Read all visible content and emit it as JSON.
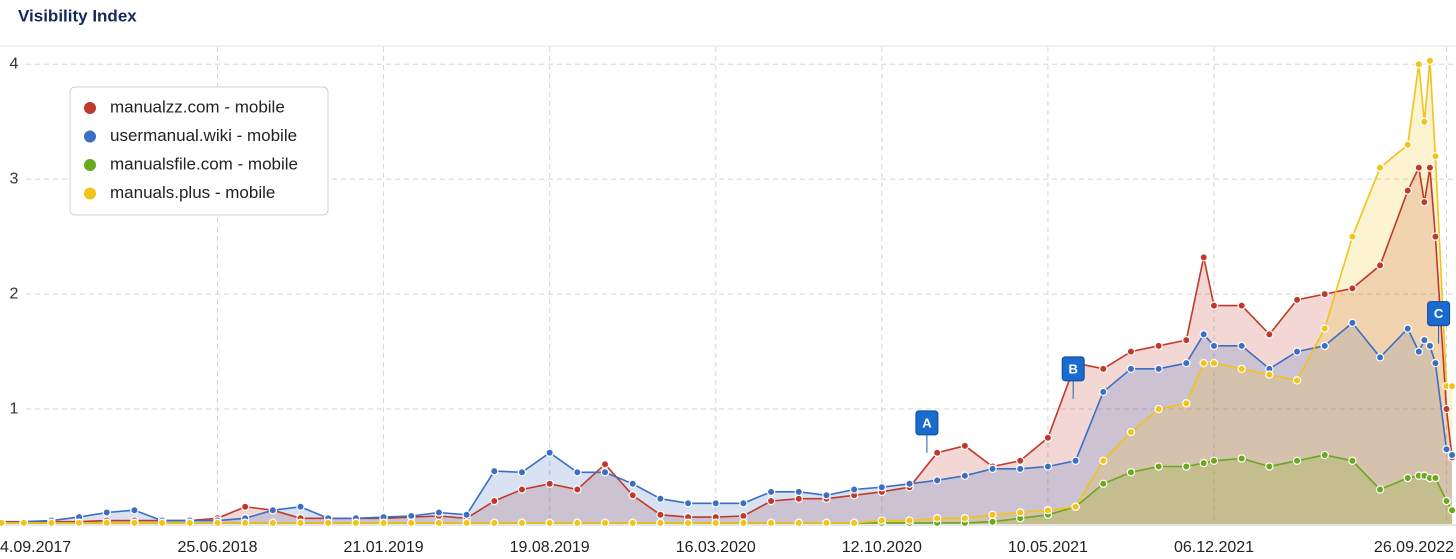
{
  "chart_data": {
    "type": "area",
    "title": "Visibility Index",
    "x": [
      "25.09.2017",
      "23.10.2017",
      "27.11.2017",
      "01.01.2018",
      "05.02.2018",
      "12.03.2018",
      "16.04.2018",
      "21.05.2018",
      "25.06.2018",
      "30.07.2018",
      "03.09.2018",
      "08.10.2018",
      "12.11.2018",
      "17.12.2018",
      "21.01.2019",
      "25.02.2019",
      "01.04.2019",
      "06.05.2019",
      "10.06.2019",
      "15.07.2019",
      "19.08.2019",
      "23.09.2019",
      "28.10.2019",
      "02.12.2019",
      "06.01.2020",
      "10.02.2020",
      "16.03.2020",
      "20.04.2020",
      "25.05.2020",
      "29.06.2020",
      "03.08.2020",
      "07.09.2020",
      "12.10.2020",
      "16.11.2020",
      "21.12.2020",
      "25.01.2021",
      "01.03.2021",
      "05.04.2021",
      "10.05.2021",
      "14.06.2021",
      "19.07.2021",
      "23.08.2021",
      "27.09.2021",
      "01.11.2021",
      "23.11.2021",
      "06.12.2021",
      "10.01.2022",
      "14.02.2022",
      "21.03.2022",
      "25.04.2022",
      "30.05.2022",
      "04.07.2022",
      "08.08.2022",
      "22.08.2022",
      "29.08.2022",
      "05.09.2022",
      "12.09.2022",
      "26.09.2022",
      "03.10.2022"
    ],
    "series": [
      {
        "name": "manualzz.com - mobile",
        "color": "#c0392b",
        "values": [
          0.02,
          0.02,
          0.02,
          0.02,
          0.03,
          0.03,
          0.03,
          0.03,
          0.05,
          0.15,
          0.12,
          0.05,
          0.05,
          0.05,
          0.05,
          0.06,
          0.07,
          0.05,
          0.2,
          0.3,
          0.35,
          0.3,
          0.52,
          0.25,
          0.08,
          0.06,
          0.06,
          0.07,
          0.2,
          0.22,
          0.22,
          0.25,
          0.28,
          0.32,
          0.62,
          0.68,
          0.5,
          0.55,
          0.75,
          1.4,
          1.35,
          1.5,
          1.55,
          1.6,
          2.32,
          1.9,
          1.9,
          1.65,
          1.95,
          2.0,
          2.05,
          2.25,
          2.9,
          3.1,
          2.8,
          3.1,
          2.5,
          1.0,
          0.58
        ]
      },
      {
        "name": "usermanual.wiki - mobile",
        "color": "#3a6fc4",
        "values": [
          0.01,
          0.02,
          0.03,
          0.06,
          0.1,
          0.12,
          0.03,
          0.03,
          0.03,
          0.05,
          0.12,
          0.15,
          0.05,
          0.05,
          0.06,
          0.07,
          0.1,
          0.08,
          0.46,
          0.45,
          0.62,
          0.45,
          0.45,
          0.35,
          0.22,
          0.18,
          0.18,
          0.18,
          0.28,
          0.28,
          0.25,
          0.3,
          0.32,
          0.35,
          0.38,
          0.42,
          0.48,
          0.48,
          0.5,
          0.55,
          1.15,
          1.35,
          1.35,
          1.4,
          1.65,
          1.55,
          1.55,
          1.35,
          1.5,
          1.55,
          1.75,
          1.45,
          1.7,
          1.5,
          1.6,
          1.55,
          1.4,
          0.65,
          0.6
        ]
      },
      {
        "name": "manualsfile.com - mobile",
        "color": "#6aa81e",
        "values": [
          0.01,
          0.01,
          0.01,
          0.01,
          0.01,
          0.01,
          0.01,
          0.01,
          0.01,
          0.01,
          0.01,
          0.01,
          0.01,
          0.01,
          0.01,
          0.01,
          0.01,
          0.01,
          0.01,
          0.01,
          0.01,
          0.01,
          0.01,
          0.01,
          0.01,
          0.01,
          0.01,
          0.01,
          0.01,
          0.01,
          0.01,
          0.01,
          0.01,
          0.01,
          0.01,
          0.01,
          0.02,
          0.05,
          0.08,
          0.15,
          0.35,
          0.45,
          0.5,
          0.5,
          0.53,
          0.55,
          0.57,
          0.5,
          0.55,
          0.6,
          0.55,
          0.3,
          0.4,
          0.42,
          0.42,
          0.4,
          0.4,
          0.2,
          0.12
        ]
      },
      {
        "name": "manuals.plus - mobile",
        "color": "#f2c318",
        "values": [
          0.01,
          0.01,
          0.01,
          0.01,
          0.01,
          0.01,
          0.01,
          0.01,
          0.01,
          0.01,
          0.01,
          0.01,
          0.01,
          0.01,
          0.01,
          0.01,
          0.01,
          0.01,
          0.01,
          0.01,
          0.01,
          0.01,
          0.01,
          0.01,
          0.01,
          0.01,
          0.01,
          0.01,
          0.01,
          0.01,
          0.01,
          0.01,
          0.03,
          0.03,
          0.05,
          0.05,
          0.08,
          0.1,
          0.12,
          0.15,
          0.55,
          0.8,
          1.0,
          1.05,
          1.4,
          1.4,
          1.35,
          1.3,
          1.25,
          1.7,
          2.5,
          3.1,
          3.3,
          4.0,
          3.5,
          4.03,
          3.2,
          1.2,
          1.2
        ]
      }
    ],
    "xlim": [
      "23.09.2017",
      "08.10.2022"
    ],
    "xticks": [
      "4.09.2017",
      "25.06.2018",
      "21.01.2019",
      "19.08.2019",
      "16.03.2020",
      "12.10.2020",
      "10.05.2021",
      "06.12.2021",
      "26.09.2022"
    ],
    "ylim": [
      0,
      4.15
    ],
    "yticks": [
      1,
      2,
      3,
      4
    ],
    "grid": true,
    "legend": "top-left",
    "annotations": [
      {
        "label": "A",
        "x": "08.12.2020",
        "y": 0.88
      },
      {
        "label": "B",
        "x": "11.06.2021",
        "y": 1.35
      },
      {
        "label": "C",
        "x": "16.09.2022",
        "y": 1.83
      }
    ]
  }
}
